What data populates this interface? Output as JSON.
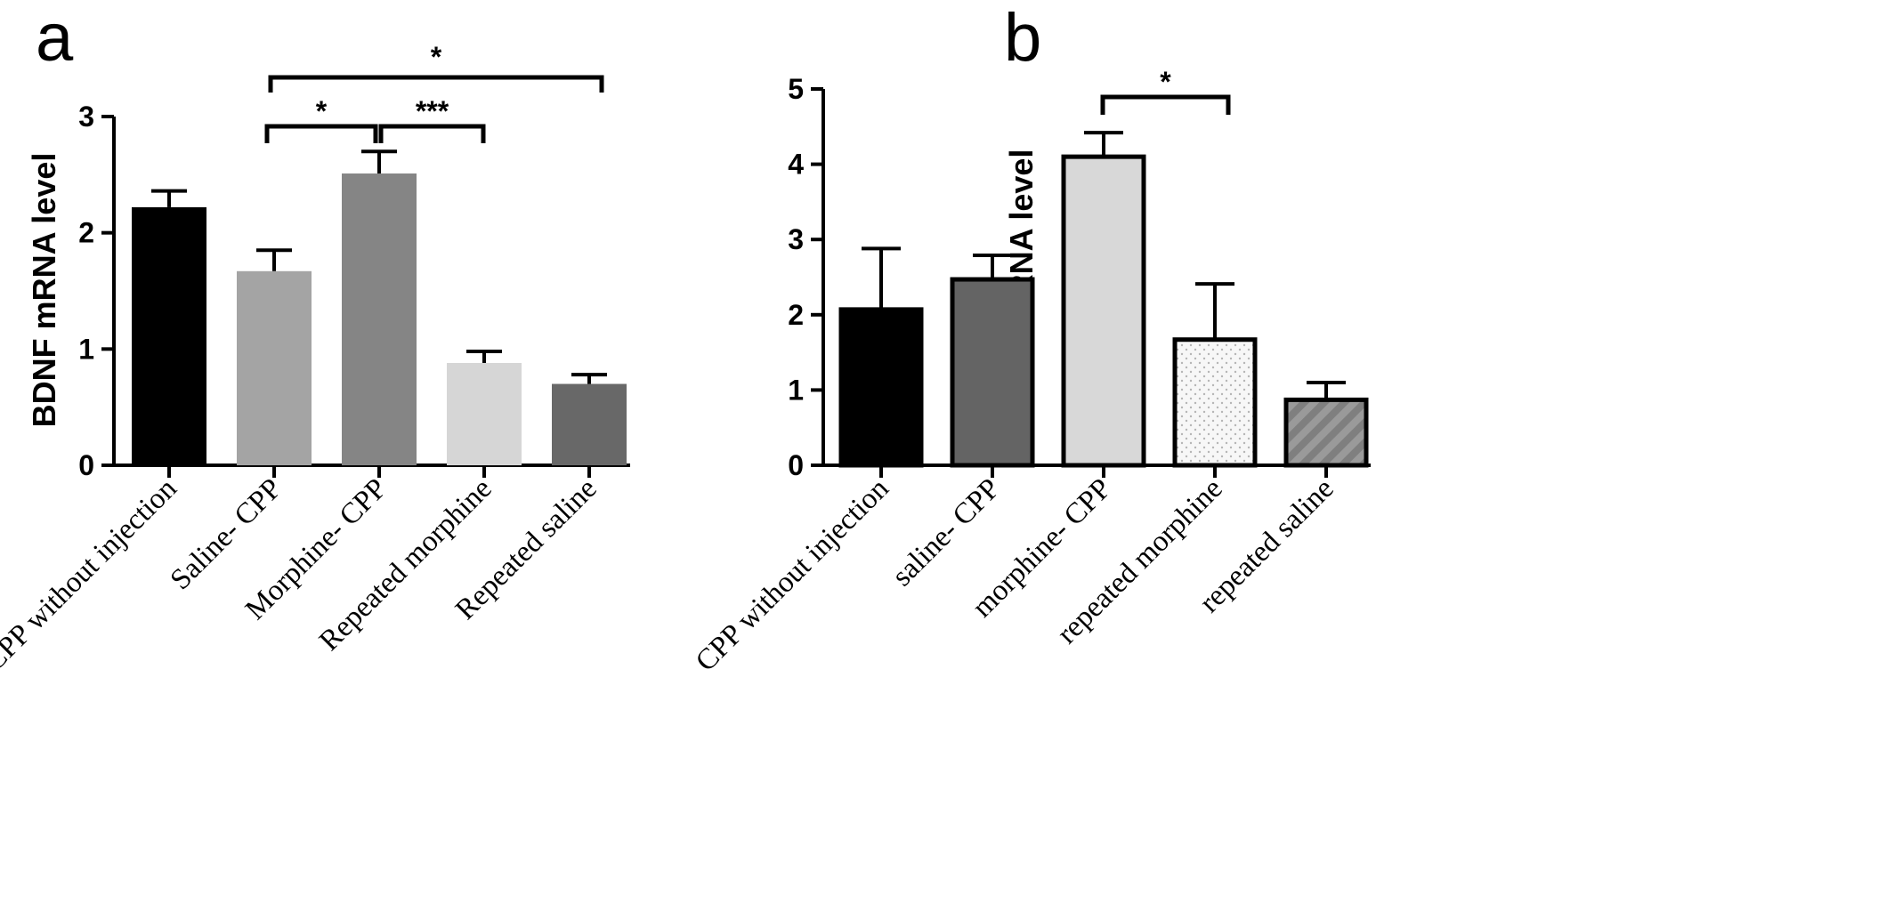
{
  "chart_data": [
    {
      "panel": "a",
      "type": "bar",
      "ylabel": "BDNF mRNA level",
      "ylim": [
        0,
        3
      ],
      "yticks": [
        0,
        1,
        2,
        3
      ],
      "ytick_labels": [
        "0",
        "1",
        "2",
        "3"
      ],
      "categories": [
        "CPP without injection",
        "Saline- CPP",
        "Morphine- CPP",
        "Repeated morphine",
        "Repeated saline"
      ],
      "values": [
        2.22,
        1.67,
        2.51,
        0.88,
        0.7
      ],
      "errors": [
        0.14,
        0.18,
        0.19,
        0.1,
        0.08
      ],
      "colors": [
        "#000000",
        "#a4a4a4",
        "#858585",
        "#d6d6d6",
        "#686868"
      ],
      "significance": [
        {
          "from": 1,
          "to": 2,
          "label": "*"
        },
        {
          "from": 2,
          "to": 3,
          "label": "***"
        },
        {
          "from": 1,
          "to": 4,
          "label": "*"
        }
      ]
    },
    {
      "panel": "b",
      "type": "bar",
      "ylabel": "TrkB mRNA level",
      "ylim": [
        0,
        5
      ],
      "yticks": [
        0,
        1,
        2,
        3,
        4,
        5
      ],
      "ytick_labels": [
        "0",
        "1",
        "2",
        "3",
        "4",
        "5"
      ],
      "categories": [
        "CPP without injection",
        "saline- CPP",
        "morphine- CPP",
        "repeated morphine",
        "repeated saline"
      ],
      "values": [
        2.07,
        2.47,
        4.1,
        1.67,
        0.87
      ],
      "errors": [
        0.81,
        0.32,
        0.32,
        0.74,
        0.23
      ],
      "colors": [
        "#000000",
        "#646464",
        "#d8d8d8",
        "#f7f7f7",
        "#7f7f7f"
      ],
      "patterns": [
        "solid",
        "solid",
        "solid",
        "dots",
        "stripes"
      ],
      "significance": [
        {
          "from": 2,
          "to": 3,
          "label": "*"
        }
      ]
    }
  ]
}
